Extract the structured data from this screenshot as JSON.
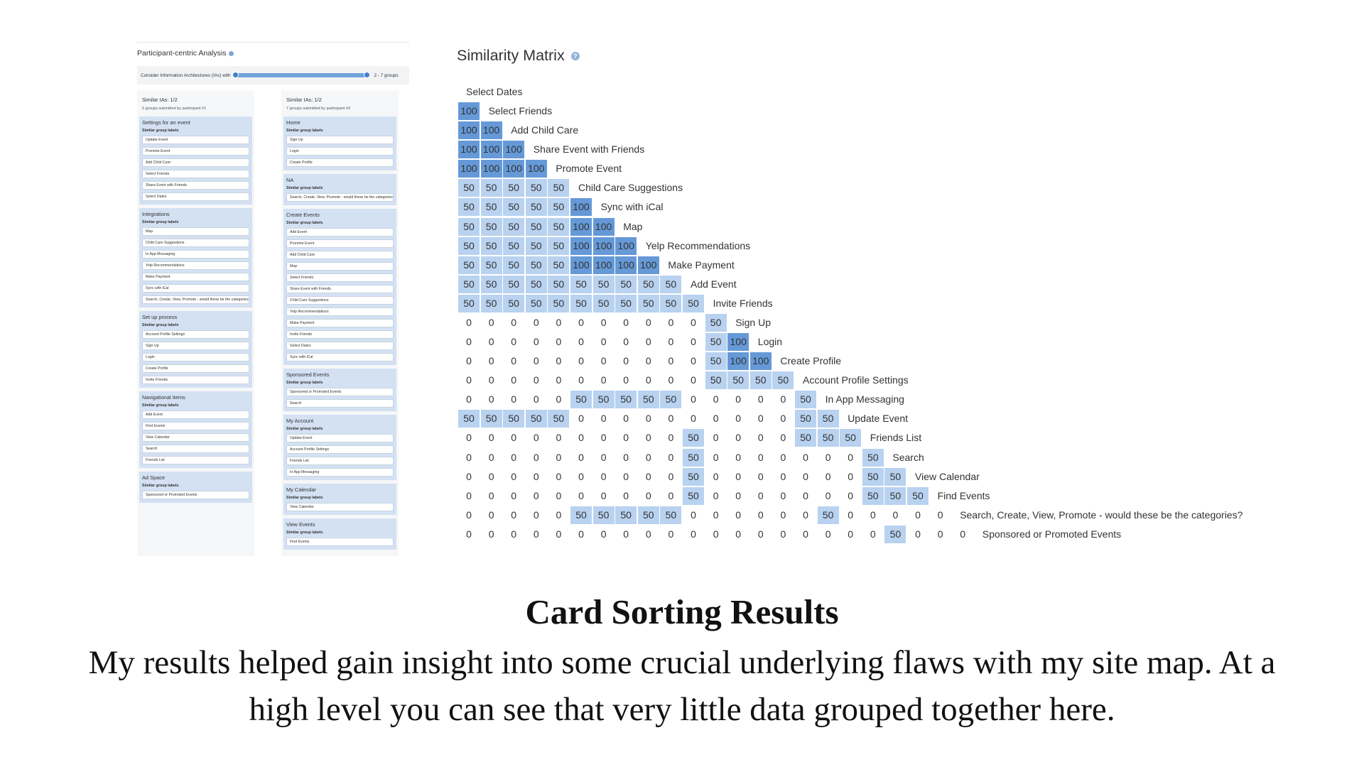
{
  "participant_analysis": {
    "title": "Participant-centric Analysis",
    "slider_label": "Consider Information Architectures (IAs) with",
    "slider_range": "2 - 7 groups",
    "columns": [
      {
        "title": "Similar IAs: 1/2",
        "subtitle": "5 groups submitted by participant #1",
        "groups": [
          {
            "name": "Settings for an event",
            "sub": "Similar group labels",
            "cards": [
              "Update Event",
              "Promote Event",
              "Add Child Care",
              "Select Friends",
              "Share Event with Friends",
              "Select Dates"
            ]
          },
          {
            "name": "Integrations",
            "sub": "Similar group labels",
            "cards": [
              "Map",
              "Child Care Suggestions",
              "In App Messaging",
              "Yelp Recommendations",
              "Make Payment",
              "Sync with iCal",
              "Search, Create, View, Promote - would these be the categories?"
            ]
          },
          {
            "name": "Set up process",
            "sub": "Similar group labels",
            "cards": [
              "Account Profile Settings",
              "Sign Up",
              "Login",
              "Create Profile",
              "Invite Friends"
            ]
          },
          {
            "name": "Navigational Items",
            "sub": "Similar group labels",
            "cards": [
              "Add Event",
              "Find Events",
              "View Calendar",
              "Search",
              "Friends List"
            ]
          },
          {
            "name": "Ad Space",
            "sub": "Similar group labels",
            "cards": [
              "Sponsored or Promoted Events"
            ]
          }
        ]
      },
      {
        "title": "Similar IAs: 1/2",
        "subtitle": "7 groups submitted by participant #2",
        "groups": [
          {
            "name": "Home",
            "sub": "Similar group labels",
            "cards": [
              "Sign Up",
              "Login",
              "Create Profile"
            ]
          },
          {
            "name": "NA",
            "sub": "Similar group labels",
            "cards": [
              "Search, Create, View, Promote - would these be the categories?"
            ]
          },
          {
            "name": "Create Events",
            "sub": "Similar group labels",
            "cards": [
              "Add Event",
              "Promote Event",
              "Add Child Care",
              "Map",
              "Select Friends",
              "Share Event with Friends",
              "Child Care Suggestions",
              "Yelp Recommendations",
              "Make Payment",
              "Invite Friends",
              "Select Dates",
              "Sync with iCal"
            ]
          },
          {
            "name": "Sponsored Events",
            "sub": "Similar group labels",
            "cards": [
              "Sponsored or Promoted Events",
              "Search"
            ]
          },
          {
            "name": "My Account",
            "sub": "Similar group labels",
            "cards": [
              "Update Event",
              "Account Profile Settings",
              "Friends List",
              "In App Messaging"
            ]
          },
          {
            "name": "My Calendar",
            "sub": "Similar group labels",
            "cards": [
              "View Calendar"
            ]
          },
          {
            "name": "View Events",
            "sub": "Similar group labels",
            "cards": [
              "Find Events"
            ]
          }
        ]
      }
    ]
  },
  "similarity_matrix": {
    "title": "Similarity Matrix",
    "labels": [
      "Select Dates",
      "Select Friends",
      "Add Child Care",
      "Share Event with Friends",
      "Promote Event",
      "Child Care Suggestions",
      "Sync with iCal",
      "Map",
      "Yelp Recommendations",
      "Make Payment",
      "Add Event",
      "Invite Friends",
      "Sign Up",
      "Login",
      "Create Profile",
      "Account Profile Settings",
      "In App Messaging",
      "Update Event",
      "Friends List",
      "Search",
      "View Calendar",
      "Find Events",
      "Search, Create, View, Promote - would these be the categories?",
      "Sponsored or Promoted Events"
    ],
    "rows": [
      [],
      [
        100
      ],
      [
        100,
        100
      ],
      [
        100,
        100,
        100
      ],
      [
        100,
        100,
        100,
        100
      ],
      [
        50,
        50,
        50,
        50,
        50
      ],
      [
        50,
        50,
        50,
        50,
        50,
        100
      ],
      [
        50,
        50,
        50,
        50,
        50,
        100,
        100
      ],
      [
        50,
        50,
        50,
        50,
        50,
        100,
        100,
        100
      ],
      [
        50,
        50,
        50,
        50,
        50,
        100,
        100,
        100,
        100
      ],
      [
        50,
        50,
        50,
        50,
        50,
        50,
        50,
        50,
        50,
        50
      ],
      [
        50,
        50,
        50,
        50,
        50,
        50,
        50,
        50,
        50,
        50,
        50
      ],
      [
        0,
        0,
        0,
        0,
        0,
        0,
        0,
        0,
        0,
        0,
        0,
        50
      ],
      [
        0,
        0,
        0,
        0,
        0,
        0,
        0,
        0,
        0,
        0,
        0,
        50,
        100
      ],
      [
        0,
        0,
        0,
        0,
        0,
        0,
        0,
        0,
        0,
        0,
        0,
        50,
        100,
        100
      ],
      [
        0,
        0,
        0,
        0,
        0,
        0,
        0,
        0,
        0,
        0,
        0,
        50,
        50,
        50,
        50
      ],
      [
        0,
        0,
        0,
        0,
        0,
        50,
        50,
        50,
        50,
        50,
        0,
        0,
        0,
        0,
        0,
        50
      ],
      [
        50,
        50,
        50,
        50,
        50,
        0,
        0,
        0,
        0,
        0,
        0,
        0,
        0,
        0,
        0,
        50,
        50
      ],
      [
        0,
        0,
        0,
        0,
        0,
        0,
        0,
        0,
        0,
        0,
        50,
        0,
        0,
        0,
        0,
        50,
        50,
        50
      ],
      [
        0,
        0,
        0,
        0,
        0,
        0,
        0,
        0,
        0,
        0,
        50,
        0,
        0,
        0,
        0,
        0,
        0,
        0,
        50
      ],
      [
        0,
        0,
        0,
        0,
        0,
        0,
        0,
        0,
        0,
        0,
        50,
        0,
        0,
        0,
        0,
        0,
        0,
        0,
        50,
        50
      ],
      [
        0,
        0,
        0,
        0,
        0,
        0,
        0,
        0,
        0,
        0,
        50,
        0,
        0,
        0,
        0,
        0,
        0,
        0,
        50,
        50,
        50
      ],
      [
        0,
        0,
        0,
        0,
        0,
        50,
        50,
        50,
        50,
        50,
        0,
        0,
        0,
        0,
        0,
        0,
        50,
        0,
        0,
        0,
        0,
        0
      ],
      [
        0,
        0,
        0,
        0,
        0,
        0,
        0,
        0,
        0,
        0,
        0,
        0,
        0,
        0,
        0,
        0,
        0,
        0,
        0,
        50,
        0,
        0,
        0
      ]
    ]
  },
  "caption": {
    "title": "Card Sorting Results",
    "body": "My results helped gain insight into some crucial underlying flaws with my site map. At a high level you can see that very little data grouped together here."
  }
}
